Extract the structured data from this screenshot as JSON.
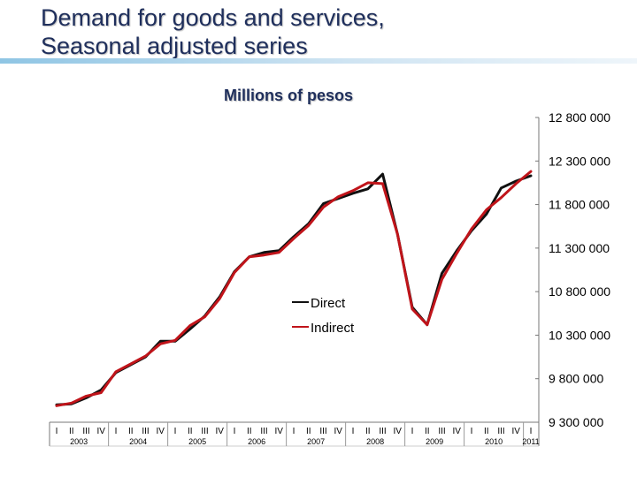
{
  "title_line1": "Demand for goods and services,",
  "title_line2": "Seasonal adjusted series",
  "colors": {
    "direct": "#111111",
    "indirect": "#c0141a",
    "title": "#1f2f5c"
  },
  "chart_data": {
    "type": "line",
    "title": "Demand for goods and services, Seasonal adjusted series",
    "subtitle": "Millions of pesos",
    "ylabel": "Millions of pesos",
    "ylim": [
      9300000,
      12800000
    ],
    "yticks": [
      12800000,
      12300000,
      11800000,
      11300000,
      10800000,
      10300000,
      9800000,
      9300000
    ],
    "ytick_labels": [
      "12 800 000",
      "12 300 000",
      "11 800 000",
      "11 300 000",
      "10 800 000",
      "10 300 000",
      "9 800 000",
      "9 300 000"
    ],
    "y_axis_position": "right",
    "quarter_labels": [
      "I",
      "II",
      "III",
      "IV",
      "I",
      "II",
      "III",
      "IV",
      "I",
      "II",
      "III",
      "IV",
      "I",
      "II",
      "III",
      "IV",
      "I",
      "II",
      "III",
      "IV",
      "I",
      "II",
      "III",
      "IV",
      "I",
      "II",
      "III",
      "IV",
      "I",
      "II",
      "III",
      "IV",
      "I"
    ],
    "year_labels": [
      "2003",
      "2004",
      "2005",
      "2006",
      "2007",
      "2008",
      "2009",
      "2010",
      "2011"
    ],
    "legend_position": "center-left",
    "series": [
      {
        "name": "Direct",
        "values": [
          9500000,
          9510000,
          9580000,
          9670000,
          9870000,
          9960000,
          10050000,
          10230000,
          10230000,
          10370000,
          10520000,
          10740000,
          11030000,
          11200000,
          11250000,
          11270000,
          11430000,
          11580000,
          11810000,
          11870000,
          11930000,
          11980000,
          12150000,
          11460000,
          10620000,
          10420000,
          11010000,
          11270000,
          11500000,
          11690000,
          11990000,
          12070000,
          12130000
        ]
      },
      {
        "name": "Indirect",
        "values": [
          9490000,
          9520000,
          9600000,
          9640000,
          9880000,
          9970000,
          10060000,
          10200000,
          10240000,
          10410000,
          10510000,
          10720000,
          11020000,
          11200000,
          11220000,
          11250000,
          11410000,
          11560000,
          11770000,
          11890000,
          11960000,
          12050000,
          12040000,
          11460000,
          10600000,
          10420000,
          10940000,
          11240000,
          11520000,
          11740000,
          11880000,
          12040000,
          12180000
        ]
      }
    ]
  }
}
